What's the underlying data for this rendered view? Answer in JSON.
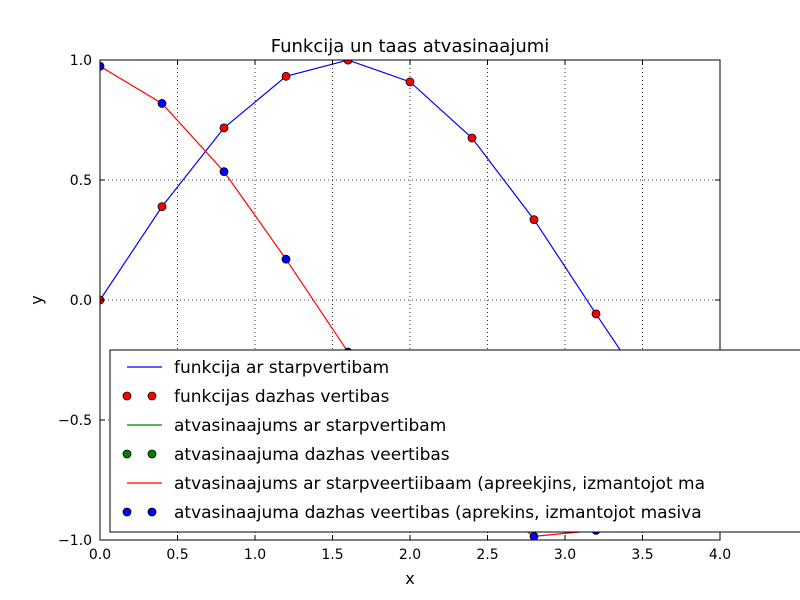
{
  "chart_data": {
    "type": "line",
    "title": "Funkcija un taas atvasinaajumi",
    "xlabel": "x",
    "ylabel": "y",
    "xlim": [
      0.0,
      4.0
    ],
    "ylim": [
      -1.0,
      1.0
    ],
    "xticks": [
      "0.0",
      "0.5",
      "1.0",
      "1.5",
      "2.0",
      "2.5",
      "3.0",
      "3.5",
      "4.0"
    ],
    "yticks": [
      "−1.0",
      "−0.5",
      "0.0",
      "0.5",
      "1.0"
    ],
    "grid": true,
    "legend_position": "lower-right",
    "series": [
      {
        "name": "funkcija ar starpvertibam",
        "style": "line",
        "color": "#0000ff",
        "x": [
          0.0,
          0.4,
          0.8,
          1.2,
          1.6,
          2.0,
          2.4,
          2.8,
          3.2,
          3.6,
          4.0
        ],
        "y": [
          0.0,
          0.389,
          0.717,
          0.932,
          0.9996,
          0.909,
          0.675,
          0.335,
          -0.058,
          -0.443,
          -0.757
        ]
      },
      {
        "name": "funkcijas dazhas vertibas",
        "style": "markers",
        "color": "#ff0000",
        "x": [
          0.0,
          0.4,
          0.8,
          1.2,
          1.6,
          2.0,
          2.4,
          2.8,
          3.2,
          3.6,
          4.0
        ],
        "y": [
          0.0,
          0.389,
          0.717,
          0.932,
          0.9996,
          0.909,
          0.675,
          0.335,
          -0.058,
          -0.443,
          -0.757
        ]
      },
      {
        "name": "atvasinaajums ar starpvertibam",
        "style": "line",
        "color": "#008000",
        "x": [],
        "y": []
      },
      {
        "name": "atvasinaajuma dazhas veertibas",
        "style": "markers",
        "color": "#008000",
        "x": [],
        "y": []
      },
      {
        "name": "atvasinaajums ar starpveertiibaam (apreekjins, izmantojot ma",
        "style": "line",
        "color": "#ff0000",
        "x": [
          0.0,
          0.4,
          0.8,
          1.2,
          1.6,
          2.0,
          2.4,
          2.8,
          3.2,
          3.6,
          4.0
        ],
        "y": [
          0.974,
          0.819,
          0.535,
          0.17,
          -0.217,
          -0.56,
          -0.813,
          -0.985,
          -0.96,
          -0.825,
          -0.65
        ]
      },
      {
        "name": "atvasinaajuma dazhas veertibas (aprekins, izmantojot masiva",
        "style": "markers",
        "color": "#0000ff",
        "x": [
          0.0,
          0.4,
          0.8,
          1.2,
          1.6,
          2.0,
          2.4,
          2.8,
          3.2,
          3.6,
          4.0
        ],
        "y": [
          0.974,
          0.819,
          0.535,
          0.17,
          -0.217,
          -0.56,
          -0.813,
          -0.985,
          -0.96,
          -0.825,
          -0.65
        ]
      }
    ]
  }
}
